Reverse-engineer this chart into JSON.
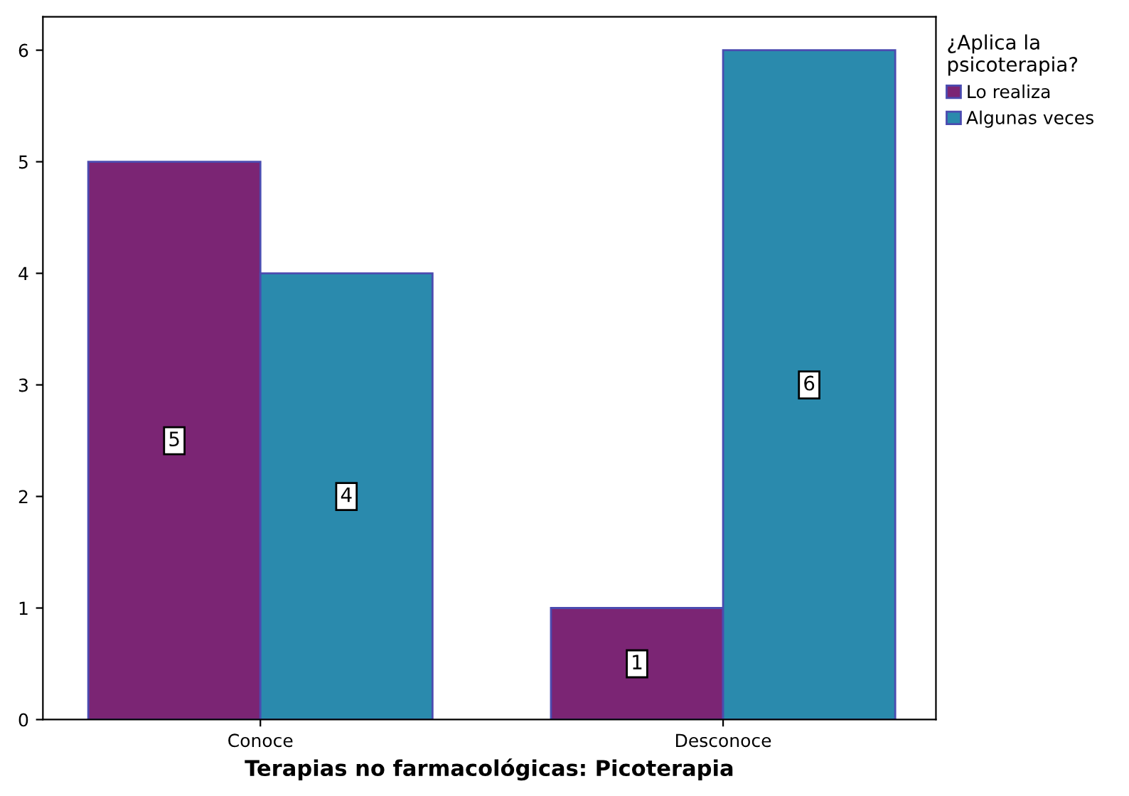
{
  "chart_data": {
    "type": "bar",
    "xlabel": "Terapias no farmacológicas: Picoterapia",
    "legend_title": "¿Aplica la\npsicoterapia?",
    "categories": [
      "Conoce",
      "Desconoce"
    ],
    "series": [
      {
        "name": "Lo realiza",
        "color": "#7b2574",
        "values": [
          5,
          1
        ]
      },
      {
        "name": "Algunas veces",
        "color": "#2a8aad",
        "values": [
          4,
          6
        ]
      }
    ],
    "ylim": [
      0,
      6.3
    ],
    "yticks": [
      0,
      1,
      2,
      3,
      4,
      5,
      6
    ],
    "grid": false,
    "legend": "top right",
    "data_labels": true
  }
}
